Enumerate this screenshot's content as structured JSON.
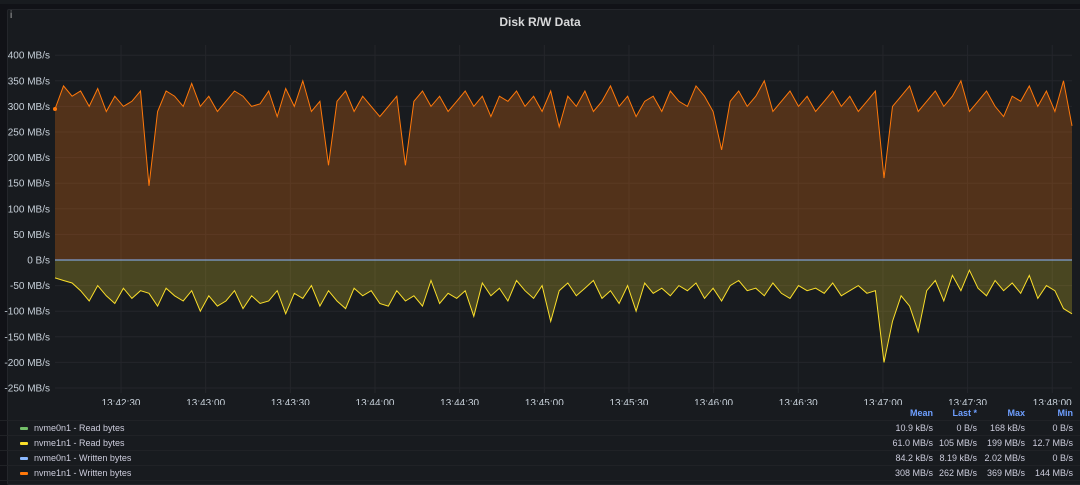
{
  "panel": {
    "title": "Disk R/W Data",
    "info_icon": "i"
  },
  "chart_data": {
    "type": "area",
    "title": "Disk R/W Data",
    "unit": "MB/s",
    "ylim": [
      -270,
      430
    ],
    "yticks": [
      400,
      350,
      300,
      250,
      200,
      150,
      100,
      50,
      0,
      -50,
      -100,
      -150,
      -200,
      -250
    ],
    "ytick_labels": [
      "400 MB/s",
      "350 MB/s",
      "300 MB/s",
      "250 MB/s",
      "200 MB/s",
      "150 MB/s",
      "100 MB/s",
      "50 MB/s",
      "0 B/s",
      "-50 MB/s",
      "-100 MB/s",
      "-150 MB/s",
      "-200 MB/s",
      "-250 MB/s"
    ],
    "x_start_seconds": -23.4,
    "x_end_seconds": 337,
    "xtick_seconds": [
      0,
      30,
      60,
      90,
      120,
      150,
      180,
      210,
      240,
      270,
      300,
      330
    ],
    "xtick_labels": [
      "13:42:30",
      "13:43:00",
      "13:43:30",
      "13:44:00",
      "13:44:30",
      "13:45:00",
      "13:45:30",
      "13:46:00",
      "13:46:30",
      "13:47:00",
      "13:47:30",
      "13:48:00"
    ],
    "grid": true,
    "legend_placement": "bottom",
    "legend_headers": [
      "Mean",
      "Last *",
      "Max",
      "Min"
    ],
    "series": [
      {
        "name": "nvme0n1 - Read bytes",
        "color": "#73bf69",
        "stats": [
          "10.9 kB/s",
          "0 B/s",
          "168 kB/s",
          "0 B/s"
        ],
        "values": [
          0,
          0,
          0,
          0,
          0,
          0,
          0,
          0,
          0,
          0,
          0,
          0
        ]
      },
      {
        "name": "nvme1n1 - Read bytes",
        "color": "#fade2a",
        "stats": [
          "61.0 MB/s",
          "105 MB/s",
          "199 MB/s",
          "12.7 MB/s"
        ],
        "values": [
          -35,
          -40,
          -45,
          -60,
          -80,
          -50,
          -70,
          -85,
          -55,
          -75,
          -60,
          -65,
          -90,
          -55,
          -70,
          -80,
          -60,
          -100,
          -70,
          -90,
          -80,
          -60,
          -95,
          -70,
          -85,
          -80,
          -60,
          -105,
          -65,
          -75,
          -50,
          -90,
          -60,
          -80,
          -95,
          -55,
          -70,
          -60,
          -85,
          -90,
          -60,
          -80,
          -70,
          -90,
          -40,
          -85,
          -65,
          -75,
          -60,
          -110,
          -45,
          -70,
          -55,
          -80,
          -40,
          -60,
          -75,
          -50,
          -120,
          -60,
          -45,
          -70,
          -55,
          -40,
          -75,
          -60,
          -85,
          -50,
          -100,
          -45,
          -65,
          -55,
          -70,
          -50,
          -60,
          -45,
          -75,
          -55,
          -80,
          -50,
          -40,
          -60,
          -55,
          -70,
          -45,
          -65,
          -75,
          -50,
          -60,
          -55,
          -65,
          -45,
          -70,
          -60,
          -50,
          -65,
          -60,
          -200,
          -120,
          -70,
          -90,
          -140,
          -60,
          -40,
          -80,
          -30,
          -60,
          -20,
          -55,
          -70,
          -40,
          -60,
          -45,
          -65,
          -30,
          -75,
          -50,
          -60,
          -95,
          -105
        ]
      },
      {
        "name": "nvme0n1 - Written bytes",
        "color": "#8ab8ff",
        "stats": [
          "84.2 kB/s",
          "8.19 kB/s",
          "2.02 MB/s",
          "0 B/s"
        ],
        "values": [
          0,
          0,
          0,
          0,
          0,
          0,
          0,
          0,
          0,
          0,
          0,
          0
        ]
      },
      {
        "name": "nvme1n1 - Written bytes",
        "color": "#ff780a",
        "stats": [
          "308 MB/s",
          "262 MB/s",
          "369 MB/s",
          "144 MB/s"
        ],
        "values": [
          295,
          340,
          320,
          330,
          300,
          335,
          290,
          320,
          300,
          310,
          330,
          145,
          290,
          330,
          320,
          300,
          345,
          300,
          320,
          290,
          310,
          330,
          320,
          300,
          305,
          330,
          280,
          335,
          300,
          350,
          290,
          310,
          185,
          310,
          330,
          290,
          320,
          300,
          280,
          300,
          320,
          185,
          310,
          330,
          300,
          320,
          290,
          310,
          330,
          300,
          320,
          280,
          320,
          310,
          330,
          300,
          320,
          290,
          330,
          260,
          320,
          300,
          330,
          290,
          310,
          340,
          300,
          320,
          280,
          310,
          320,
          290,
          330,
          310,
          300,
          340,
          320,
          290,
          215,
          310,
          330,
          300,
          320,
          350,
          290,
          310,
          330,
          300,
          320,
          290,
          310,
          330,
          300,
          320,
          290,
          310,
          330,
          160,
          300,
          320,
          340,
          290,
          310,
          330,
          300,
          320,
          350,
          290,
          310,
          330,
          300,
          280,
          320,
          310,
          340,
          300,
          330,
          290,
          350,
          262
        ]
      }
    ]
  }
}
